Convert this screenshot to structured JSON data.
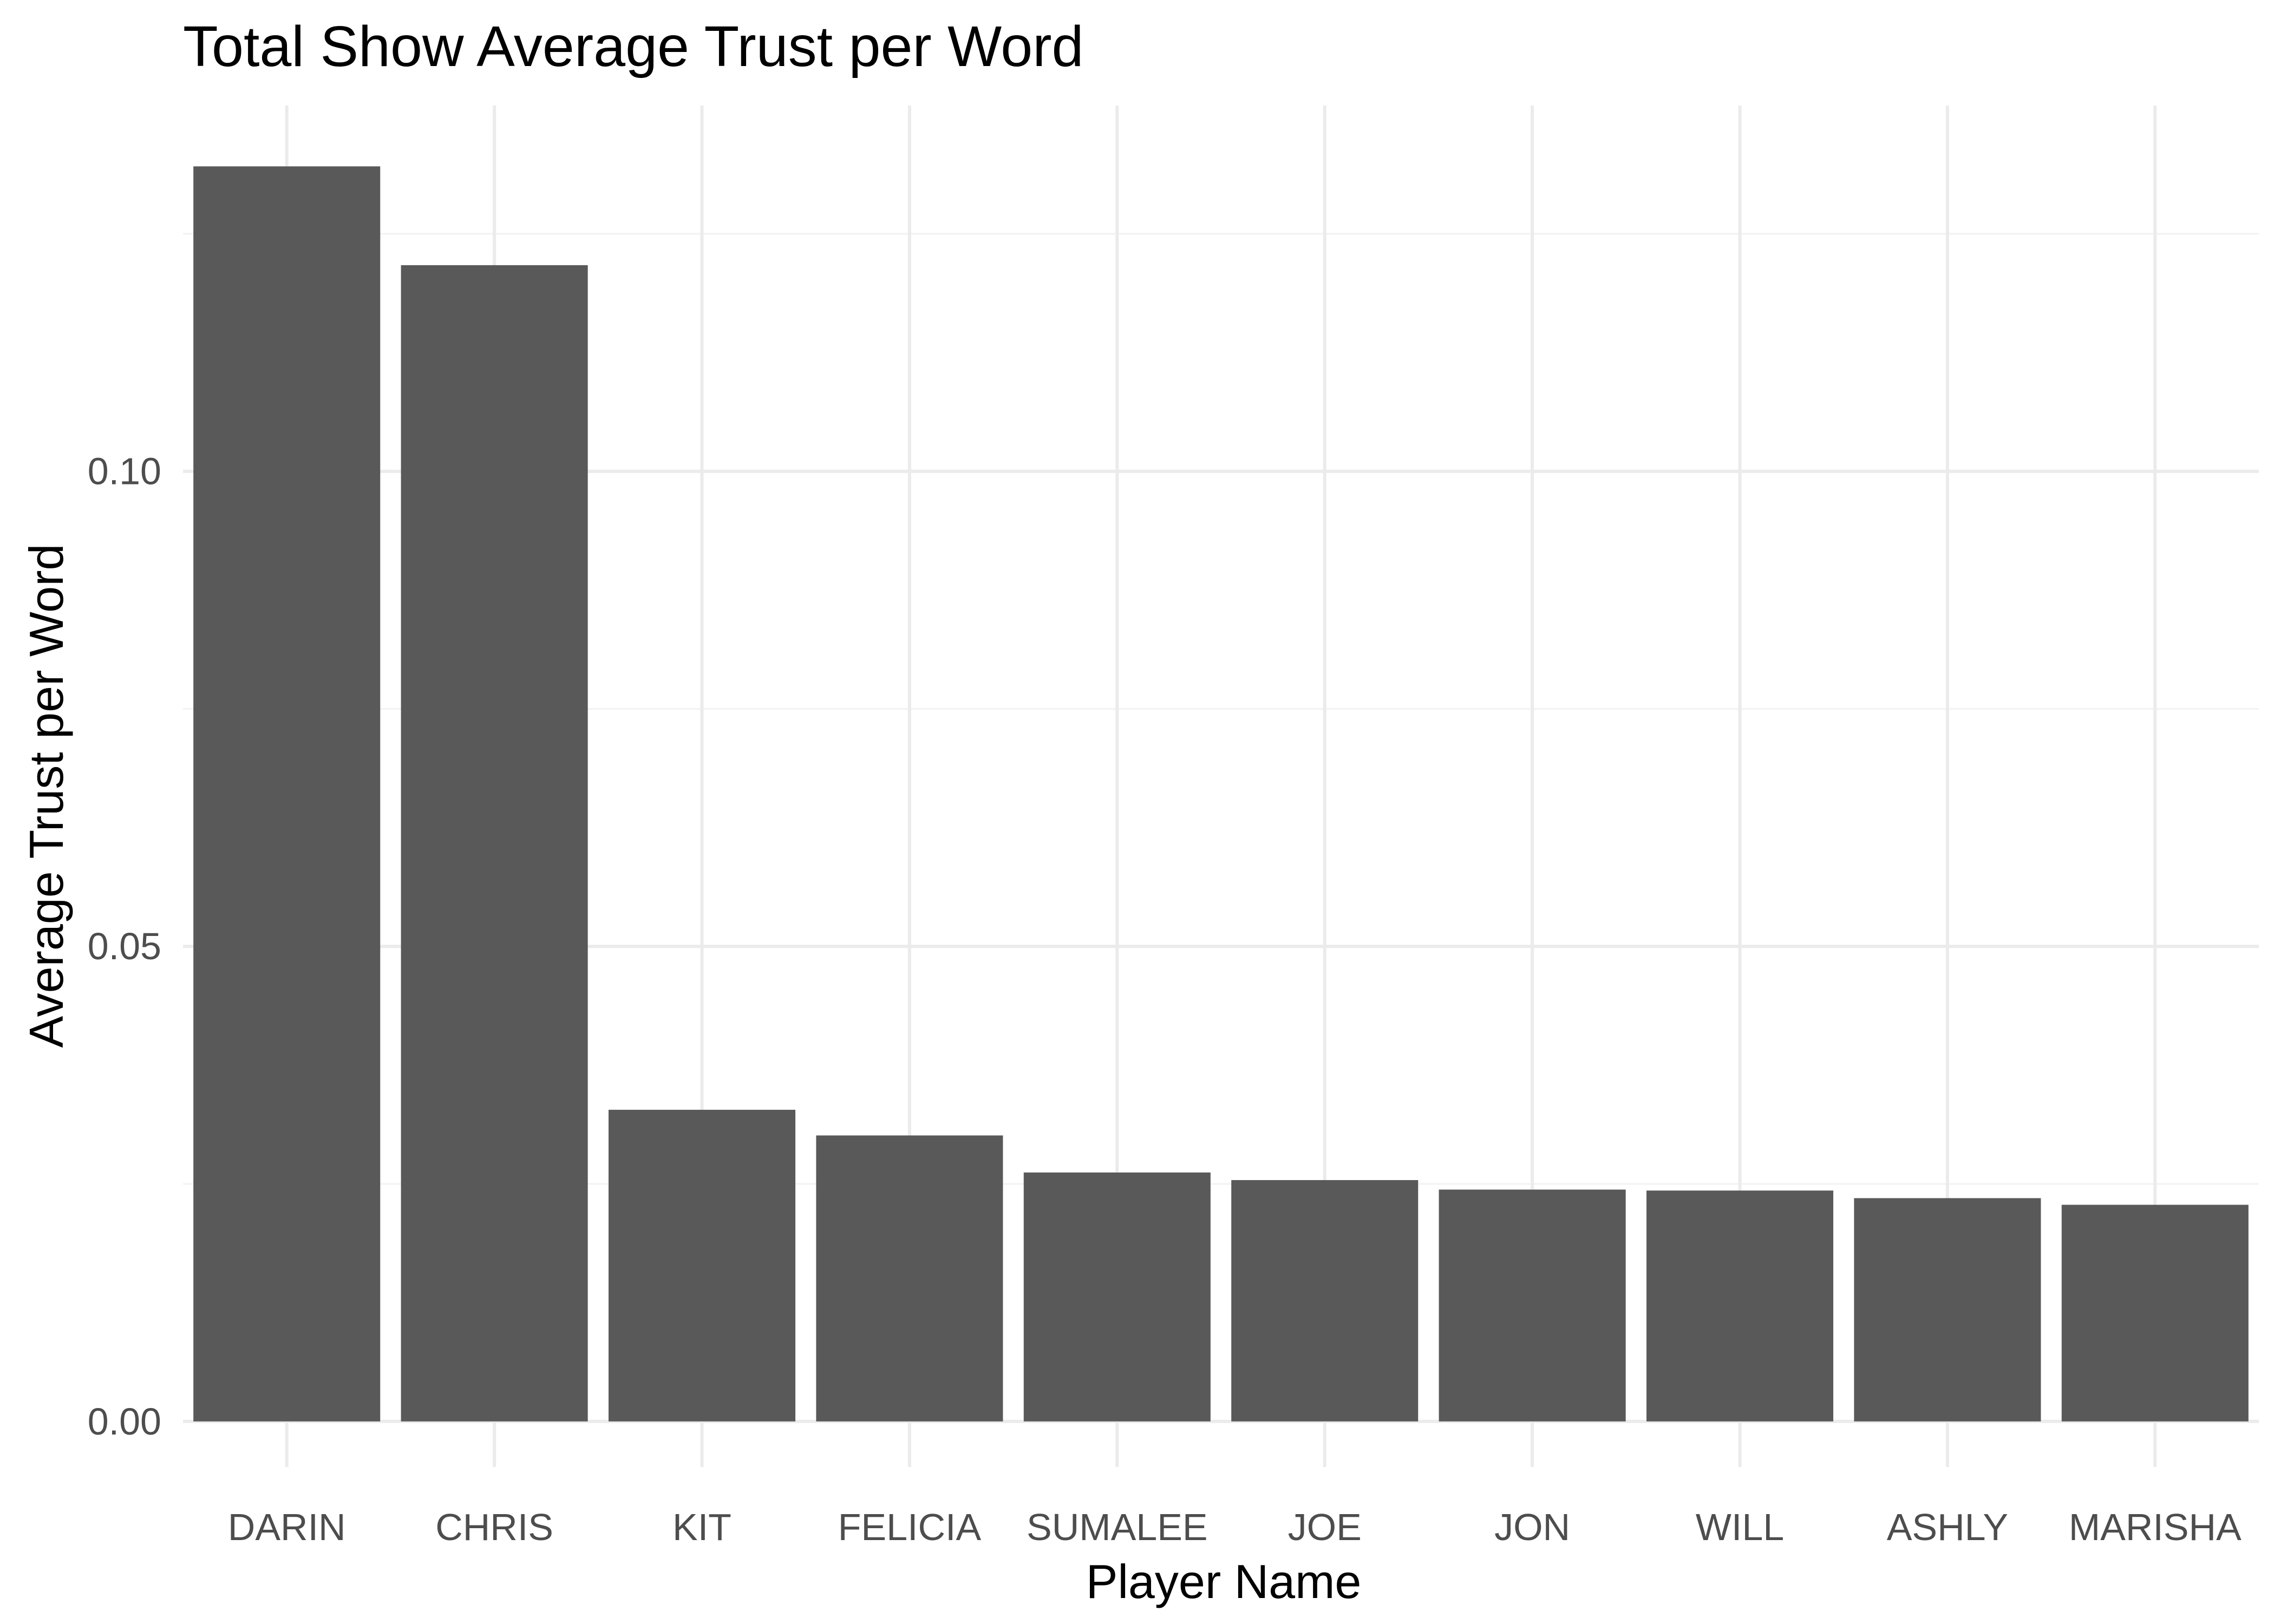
{
  "chart_data": {
    "type": "bar",
    "title": "Total Show Average Trust per Word",
    "xlabel": "Player Name",
    "ylabel": "Average Trust per Word",
    "categories": [
      "DARIN",
      "CHRIS",
      "KIT",
      "FELICIA",
      "SUMALEE",
      "JOE",
      "JON",
      "WILL",
      "ASHLY",
      "MARISHA"
    ],
    "values": [
      0.1321,
      0.1217,
      0.0328,
      0.0301,
      0.0262,
      0.0254,
      0.0244,
      0.0243,
      0.0235,
      0.0228
    ],
    "ylim": [
      -0.0048,
      0.1385
    ],
    "yticks": [
      0.0,
      0.05,
      0.1
    ],
    "ytick_labels": [
      "0.00",
      "0.05",
      "0.10"
    ],
    "grid": true,
    "legend": "none",
    "bar_color": "#595959",
    "grid_color": "#ebebeb",
    "background": "#ffffff"
  }
}
